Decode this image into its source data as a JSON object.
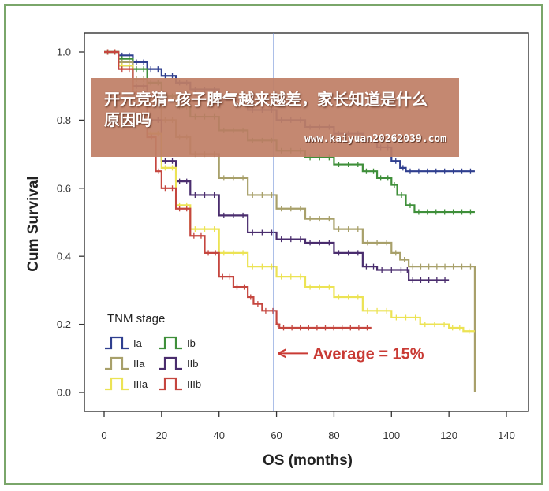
{
  "chart_data": {
    "type": "line",
    "step": true,
    "xlabel": "OS (months)",
    "ylabel": "Cum Survival",
    "xlim": [
      0,
      140
    ],
    "ylim": [
      0,
      1.0
    ],
    "x_ticks": [
      "0",
      "20",
      "40",
      "60",
      "80",
      "100",
      "120",
      "140"
    ],
    "y_ticks": [
      "0.0",
      "0.2",
      "0.4",
      "0.6",
      "0.8",
      "1.0"
    ],
    "grid": false,
    "legend_title": "TNM stage",
    "legend_position": "bottom-left",
    "series": [
      {
        "name": "Ia",
        "color": "#2f3f8f",
        "points": [
          [
            0,
            1.0
          ],
          [
            5,
            0.99
          ],
          [
            10,
            0.97
          ],
          [
            15,
            0.95
          ],
          [
            20,
            0.93
          ],
          [
            25,
            0.91
          ],
          [
            30,
            0.89
          ],
          [
            40,
            0.86
          ],
          [
            50,
            0.83
          ],
          [
            60,
            0.8
          ],
          [
            70,
            0.78
          ],
          [
            80,
            0.76
          ],
          [
            90,
            0.74
          ],
          [
            95,
            0.72
          ],
          [
            100,
            0.68
          ],
          [
            103,
            0.66
          ],
          [
            105,
            0.65
          ],
          [
            129,
            0.65
          ]
        ]
      },
      {
        "name": "Ib",
        "color": "#3f8f3a",
        "points": [
          [
            0,
            1.0
          ],
          [
            5,
            0.98
          ],
          [
            10,
            0.95
          ],
          [
            15,
            0.91
          ],
          [
            20,
            0.87
          ],
          [
            25,
            0.84
          ],
          [
            30,
            0.81
          ],
          [
            40,
            0.77
          ],
          [
            50,
            0.74
          ],
          [
            60,
            0.71
          ],
          [
            70,
            0.69
          ],
          [
            80,
            0.67
          ],
          [
            90,
            0.65
          ],
          [
            95,
            0.63
          ],
          [
            100,
            0.61
          ],
          [
            102,
            0.58
          ],
          [
            105,
            0.55
          ],
          [
            108,
            0.53
          ],
          [
            129,
            0.53
          ]
        ]
      },
      {
        "name": "IIa",
        "color": "#a8a06a",
        "points": [
          [
            0,
            1.0
          ],
          [
            5,
            0.97
          ],
          [
            10,
            0.92
          ],
          [
            15,
            0.86
          ],
          [
            20,
            0.8
          ],
          [
            25,
            0.75
          ],
          [
            30,
            0.7
          ],
          [
            40,
            0.63
          ],
          [
            50,
            0.58
          ],
          [
            60,
            0.54
          ],
          [
            70,
            0.51
          ],
          [
            80,
            0.48
          ],
          [
            90,
            0.44
          ],
          [
            100,
            0.41
          ],
          [
            103,
            0.39
          ],
          [
            106,
            0.37
          ],
          [
            120,
            0.37
          ],
          [
            129,
            0.37
          ],
          [
            129,
            0.0
          ]
        ]
      },
      {
        "name": "IIb",
        "color": "#4a2d6e",
        "points": [
          [
            0,
            1.0
          ],
          [
            5,
            0.96
          ],
          [
            10,
            0.9
          ],
          [
            15,
            0.8
          ],
          [
            20,
            0.68
          ],
          [
            25,
            0.62
          ],
          [
            30,
            0.58
          ],
          [
            40,
            0.52
          ],
          [
            50,
            0.47
          ],
          [
            60,
            0.45
          ],
          [
            70,
            0.44
          ],
          [
            80,
            0.41
          ],
          [
            90,
            0.37
          ],
          [
            95,
            0.36
          ],
          [
            105,
            0.36
          ],
          [
            106,
            0.33
          ],
          [
            120,
            0.33
          ]
        ]
      },
      {
        "name": "IIIa",
        "color": "#ece354",
        "points": [
          [
            0,
            1.0
          ],
          [
            5,
            0.96
          ],
          [
            10,
            0.88
          ],
          [
            15,
            0.76
          ],
          [
            20,
            0.66
          ],
          [
            25,
            0.55
          ],
          [
            30,
            0.48
          ],
          [
            40,
            0.41
          ],
          [
            50,
            0.37
          ],
          [
            60,
            0.34
          ],
          [
            70,
            0.31
          ],
          [
            80,
            0.28
          ],
          [
            90,
            0.24
          ],
          [
            100,
            0.22
          ],
          [
            110,
            0.2
          ],
          [
            120,
            0.19
          ],
          [
            125,
            0.18
          ],
          [
            129,
            0.18
          ]
        ]
      },
      {
        "name": "IIIb",
        "color": "#c5463f",
        "points": [
          [
            0,
            1.0
          ],
          [
            5,
            0.95
          ],
          [
            10,
            0.88
          ],
          [
            15,
            0.75
          ],
          [
            18,
            0.65
          ],
          [
            20,
            0.6
          ],
          [
            25,
            0.54
          ],
          [
            30,
            0.46
          ],
          [
            35,
            0.41
          ],
          [
            40,
            0.34
          ],
          [
            45,
            0.31
          ],
          [
            50,
            0.28
          ],
          [
            52,
            0.26
          ],
          [
            55,
            0.24
          ],
          [
            60,
            0.2
          ],
          [
            61,
            0.19
          ],
          [
            93,
            0.19
          ]
        ]
      }
    ],
    "reference_line_x": 59,
    "annotation": {
      "text": "Average = 15%",
      "color": "#c93a34",
      "x": 60,
      "y": 0.115
    }
  },
  "banner": {
    "title": "开元竞猜–孩子脾气越来越差，家长知道是什么原因吗",
    "url": "www.kaiyuan20262039.com"
  }
}
